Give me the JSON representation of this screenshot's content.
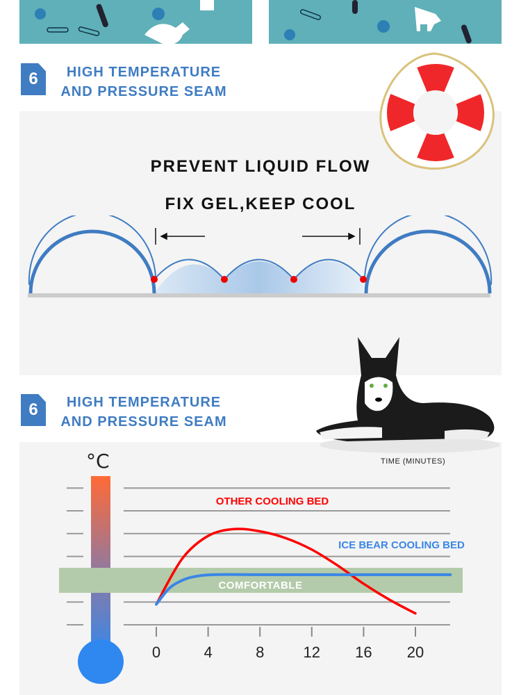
{
  "section1": {
    "badge": "6",
    "title_line1": "HIGH TEMPERATURE",
    "title_line2": "AND PRESSURE SEAM",
    "headline1": "PREVENT LIQUID FLOW",
    "headline2": "FIX GEL,KEEP COOL"
  },
  "section2": {
    "badge": "6",
    "title_line1": "HIGH TEMPERATURE",
    "title_line2": "AND PRESSURE SEAM"
  },
  "colors": {
    "accent": "#3f7cc2",
    "red": "#ff0000",
    "blue": "#3a86e6",
    "comfort": "#b3cbaa"
  },
  "chart_data": {
    "type": "line",
    "ylabel": "°C",
    "xlabel": "TIME (MINUTES)",
    "x_ticks": [
      0,
      4,
      8,
      12,
      16,
      20
    ],
    "xlim": [
      0,
      22.7
    ],
    "ylim": [
      0,
      6
    ],
    "band": {
      "label": "COMFORTABLE",
      "range": [
        1.5,
        2.6
      ]
    },
    "series": [
      {
        "name": "OTHER COOLING BED",
        "color": "#ff0000",
        "x": [
          0,
          2,
          4,
          6,
          8,
          10,
          12,
          14,
          16,
          18,
          20
        ],
        "y": [
          0.9,
          2.9,
          3.9,
          4.2,
          4.1,
          3.8,
          3.3,
          2.6,
          1.8,
          1.1,
          0.5
        ]
      },
      {
        "name": "ICE BEAR COOLING BED",
        "color": "#3a86e6",
        "x": [
          0,
          1,
          2,
          3,
          4.5,
          8,
          12,
          16,
          20,
          22.7
        ],
        "y": [
          0.9,
          1.6,
          1.95,
          2.12,
          2.2,
          2.2,
          2.2,
          2.2,
          2.2,
          2.2
        ]
      }
    ]
  }
}
